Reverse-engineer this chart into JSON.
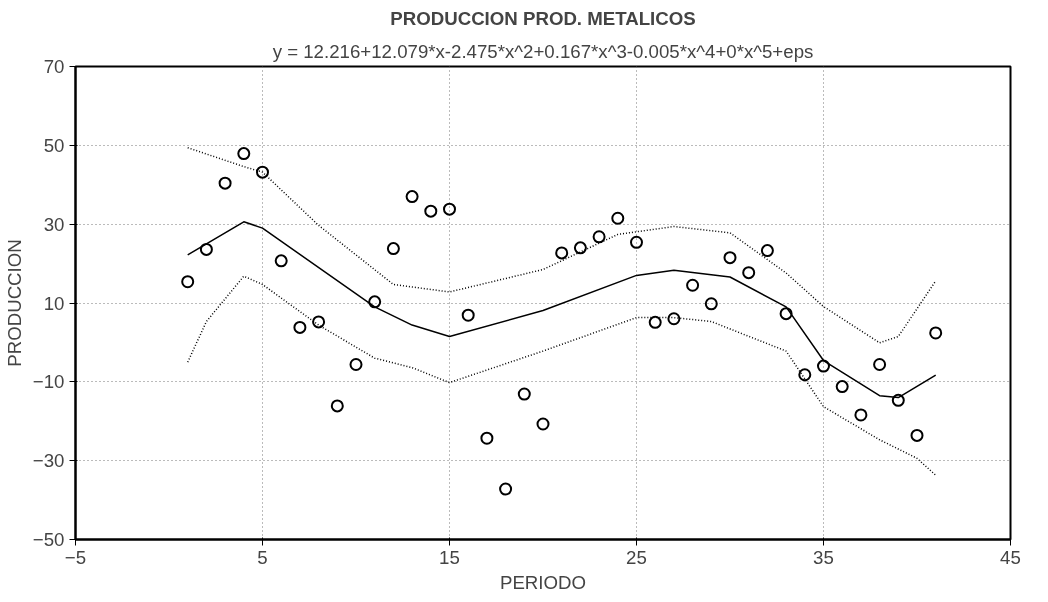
{
  "chart_data": {
    "type": "scatter",
    "title": "PRODUCCION PROD. METALICOS",
    "subtitle": "y = 12.216+12.079*x-2.475*x^2+0.167*x^3-0.005*x^4+0*x^5+eps",
    "xlabel": "PERIODO",
    "ylabel": "PRODUCCION",
    "xlim": [
      -5,
      45
    ],
    "xticks": [
      -5,
      5,
      15,
      25,
      35,
      45
    ],
    "ylim": [
      -50,
      70
    ],
    "yticks": [
      -50,
      -30,
      -10,
      10,
      30,
      50,
      70
    ],
    "grid": true,
    "series": [
      {
        "marker": "circle",
        "color": "#000000",
        "x": [
          1,
          2,
          3,
          4,
          5,
          6,
          7,
          8,
          9,
          10,
          11,
          12,
          13,
          14,
          15,
          16,
          17,
          18,
          19,
          20,
          21,
          22,
          23,
          24,
          25,
          26,
          27,
          28,
          29,
          30,
          31,
          32,
          33,
          34,
          35,
          36,
          37,
          38,
          39,
          40,
          41
        ],
        "values": [
          15.4,
          23.6,
          40.4,
          47.9,
          43.2,
          20.7,
          3.8,
          5.2,
          -16.1,
          -5.6,
          10.3,
          23.8,
          37,
          33.3,
          33.8,
          6.9,
          -24.3,
          -37.2,
          -13.1,
          -20.7,
          22.7,
          24,
          26.8,
          31.5,
          25.4,
          5.1,
          6,
          14.5,
          9.8,
          21.5,
          17.7,
          23.3,
          7.3,
          -8.2,
          -6,
          -11.2,
          -18.4,
          -5.6,
          -14.7,
          -23.6,
          2.4
        ]
      },
      {
        "type": "line",
        "line_style": "solid",
        "color": "#000000",
        "x": [
          1,
          4,
          5,
          11,
          13,
          15,
          20,
          25,
          27,
          30,
          33,
          35,
          38,
          39,
          41
        ],
        "values": [
          22.2,
          30.6,
          29,
          9,
          4.4,
          1.5,
          8.1,
          17,
          18.3,
          16.6,
          9,
          -4.6,
          -13.5,
          -14,
          -8.3
        ]
      },
      {
        "type": "line",
        "line_style": "dotted",
        "color": "#000000",
        "x": [
          1,
          4,
          5,
          8,
          10,
          12,
          15,
          20,
          24,
          27,
          30,
          33,
          35,
          38,
          39,
          41
        ],
        "values": [
          49.4,
          44.6,
          43.2,
          29.7,
          22.2,
          14.7,
          12.8,
          18.5,
          27.4,
          29.4,
          27.8,
          17.6,
          9.1,
          -0.1,
          1.5,
          15.6
        ]
      },
      {
        "type": "line",
        "line_style": "dotted",
        "color": "#000000",
        "x": [
          1,
          2,
          4,
          5,
          8,
          11,
          13,
          15,
          20,
          25,
          27,
          29,
          33,
          35,
          38,
          40,
          41
        ],
        "values": [
          -5,
          5.3,
          16.8,
          14.7,
          4.4,
          -4,
          -6.4,
          -10.2,
          -2.2,
          6.3,
          6.3,
          5.3,
          -2.2,
          -16.3,
          -24.7,
          -29.4,
          -33.7
        ]
      }
    ]
  }
}
